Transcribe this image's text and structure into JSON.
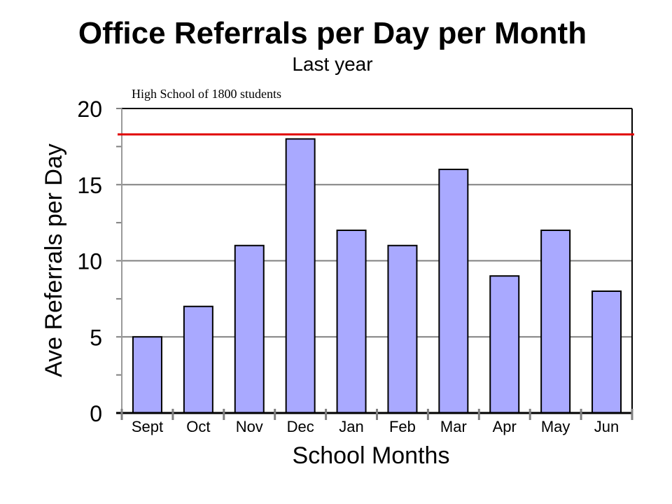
{
  "chart_data": {
    "type": "bar",
    "title": "Office Referrals per Day per Month",
    "subtitle": "Last year",
    "annotation": "High School of 1800 students",
    "xlabel": "School Months",
    "ylabel": "Ave Referrals per Day",
    "categories": [
      "Sept",
      "Oct",
      "Nov",
      "Dec",
      "Jan",
      "Feb",
      "Mar",
      "Apr",
      "May",
      "Jun"
    ],
    "values": [
      5,
      7,
      11,
      18,
      12,
      11,
      16,
      9,
      12,
      8
    ],
    "ylim": [
      0,
      20
    ],
    "yticks": [
      "0",
      "5",
      "10",
      "15",
      "20"
    ],
    "reference_line": 18.3,
    "grid": true,
    "colors": {
      "bar": "#a9a9ff",
      "bar_stroke": "#000000",
      "reference_line": "#e00000",
      "grid": "#808080"
    }
  }
}
